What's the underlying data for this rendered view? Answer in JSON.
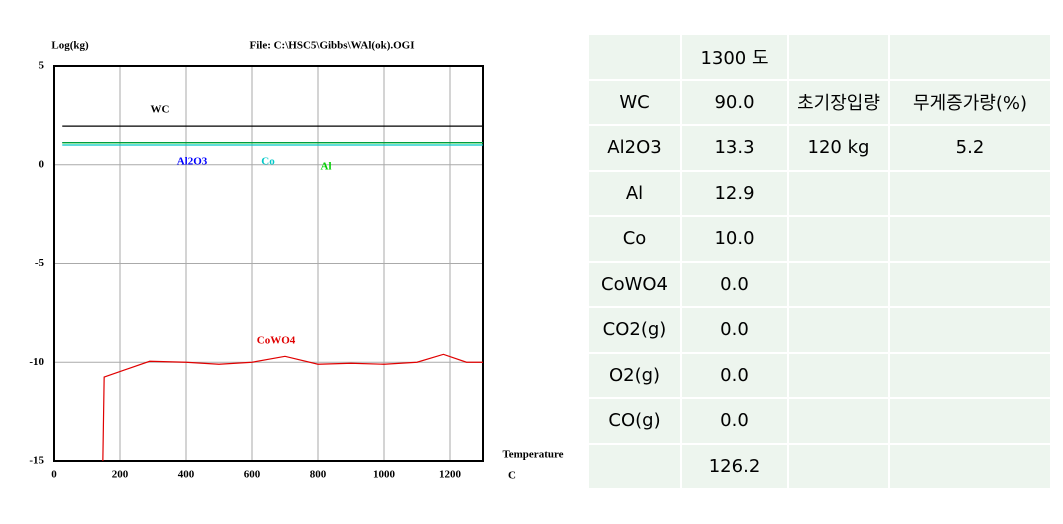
{
  "chart_data": {
    "type": "line",
    "title": "File: C:\\HSC5\\Gibbs\\WAl(ok).OGI",
    "y_label": "Log(kg)",
    "x_label": "Temperature",
    "x_unit": "C",
    "xlim": [
      0,
      1300
    ],
    "xticks": [
      0,
      200,
      400,
      600,
      800,
      1000,
      1200
    ],
    "ylim": [
      -15,
      5
    ],
    "yticks": [
      -15,
      -10,
      -5,
      0,
      5
    ],
    "grid": true,
    "series": [
      {
        "name": "WC",
        "color": "#000000",
        "x": [
          25,
          1300
        ],
        "values": [
          1.954,
          1.954
        ]
      },
      {
        "name": "Al2O3",
        "color": "#0000ff",
        "x": [
          25,
          1300
        ],
        "values": [
          1.124,
          1.124
        ]
      },
      {
        "name": "Co",
        "color": "#00c8c8",
        "x": [
          25,
          1300
        ],
        "values": [
          1.0,
          1.0
        ]
      },
      {
        "name": "Al",
        "color": "#00d000",
        "x": [
          25,
          1300
        ],
        "values": [
          1.11,
          1.11
        ]
      },
      {
        "name": "CoWO4",
        "color": "#e00000",
        "x": [
          148,
          152,
          290,
          400,
          500,
          600,
          700,
          800,
          900,
          1000,
          1100,
          1180,
          1250,
          1300
        ],
        "values": [
          -15,
          -10.75,
          -9.95,
          -10.0,
          -10.1,
          -10.0,
          -9.7,
          -10.1,
          -10.05,
          -10.1,
          -10.0,
          -9.6,
          -10.0,
          -10.0
        ]
      }
    ]
  },
  "table": {
    "rows": [
      [
        null,
        "1300 도",
        null,
        null
      ],
      [
        "WC",
        "90.0",
        "초기장입량",
        "무게증가량(%)"
      ],
      [
        "Al2O3",
        "13.3",
        "120 kg",
        "5.2"
      ],
      [
        "Al",
        "12.9",
        null,
        null
      ],
      [
        "Co",
        "10.0",
        null,
        null
      ],
      [
        "CoWO4",
        "0.0",
        null,
        null
      ],
      [
        "CO2(g)",
        "0.0",
        null,
        null
      ],
      [
        "O2(g)",
        "0.0",
        null,
        null
      ],
      [
        "CO(g)",
        "0.0",
        null,
        null
      ],
      [
        null,
        "126.2",
        null,
        null
      ]
    ]
  }
}
